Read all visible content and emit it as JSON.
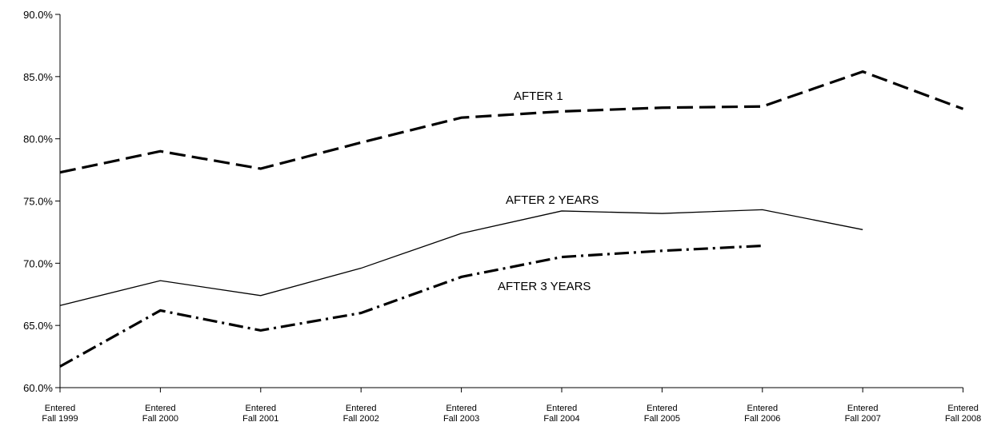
{
  "chart_data": {
    "type": "line",
    "categories": [
      [
        "Entered",
        "Fall 1999"
      ],
      [
        "Entered",
        "Fall 2000"
      ],
      [
        "Entered",
        "Fall 2001"
      ],
      [
        "Entered",
        "Fall 2002"
      ],
      [
        "Entered",
        "Fall 2003"
      ],
      [
        "Entered",
        "Fall 2004"
      ],
      [
        "Entered",
        "Fall 2005"
      ],
      [
        "Entered",
        "Fall 2006"
      ],
      [
        "Entered",
        "Fall 2007"
      ],
      [
        "Entered",
        "Fall 2008"
      ]
    ],
    "yticks": [
      "60.0%",
      "65.0%",
      "70.0%",
      "75.0%",
      "80.0%",
      "85.0%",
      "90.0%"
    ],
    "ylim": [
      60,
      90
    ],
    "grid": false,
    "series": [
      {
        "name": "AFTER 1",
        "style": "dashed",
        "values": [
          77.3,
          79.0,
          77.6,
          79.7,
          81.7,
          82.2,
          82.5,
          82.6,
          85.4,
          82.4
        ]
      },
      {
        "name": "AFTER 2 YEARS",
        "style": "solid",
        "values": [
          66.6,
          68.6,
          67.4,
          69.6,
          72.4,
          74.2,
          74.0,
          74.3,
          72.7,
          null
        ]
      },
      {
        "name": "AFTER 3 YEARS",
        "style": "dashdot",
        "values": [
          61.7,
          66.2,
          64.6,
          66.0,
          68.9,
          70.5,
          71.0,
          71.4,
          null,
          null
        ]
      }
    ]
  }
}
